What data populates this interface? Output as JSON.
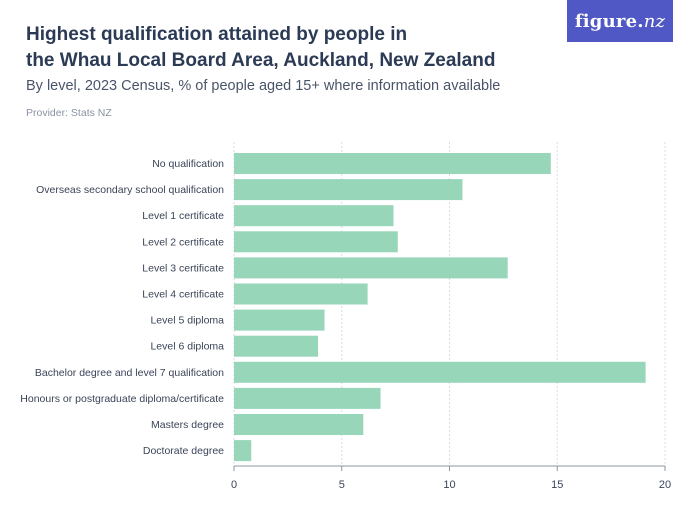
{
  "header": {
    "title_line1": "Highest qualification attained by people in",
    "title_line2": "the Whau Local Board Area, Auckland, New Zealand",
    "subtitle": "By level, 2023 Census, % of people aged 15+ where information available",
    "provider": "Provider: Stats NZ"
  },
  "logo": {
    "main": "figure.",
    "accent": "nz",
    "bg_color": "#4f58c4"
  },
  "chart_data": {
    "type": "bar",
    "orientation": "horizontal",
    "categories": [
      "No qualification",
      "Overseas secondary school qualification",
      "Level 1 certificate",
      "Level 2 certificate",
      "Level 3 certificate",
      "Level 4 certificate",
      "Level 5 diploma",
      "Level 6 diploma",
      "Bachelor degree and level 7 qualification",
      "Honours or postgraduate diploma/certificate",
      "Masters degree",
      "Doctorate degree"
    ],
    "values": [
      14.7,
      10.6,
      7.4,
      7.6,
      12.7,
      6.2,
      4.2,
      3.9,
      19.1,
      6.8,
      6.0,
      0.8
    ],
    "xlim": [
      0,
      20
    ],
    "xticks": [
      0,
      5,
      10,
      15,
      20
    ],
    "grid": "vertical",
    "bar_color": "#97d6b9"
  }
}
